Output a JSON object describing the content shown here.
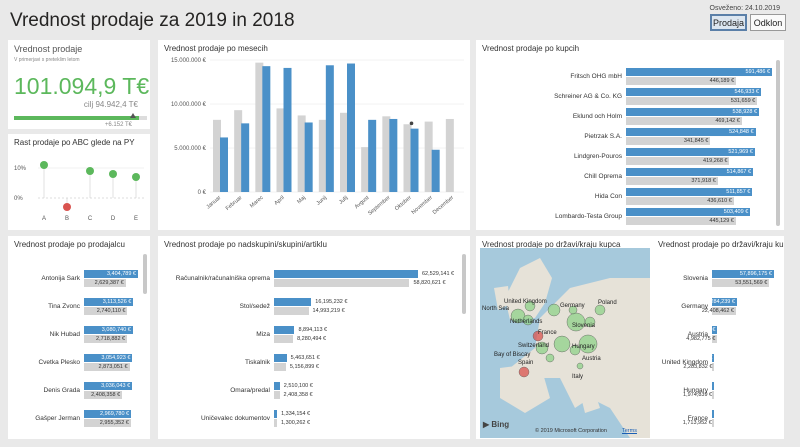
{
  "header": {
    "title": "Vrednost prodaje za 2019 in 2018",
    "refreshed": "Osveženo: 24.10.2019",
    "btn_sales": "Prodaja",
    "btn_deviation": "Odklon"
  },
  "kpi": {
    "title": "Vrednost prodaje",
    "subtitle": "V primerjavi s preteklim letom",
    "value": "101.094,9 T€",
    "target": "cilj 94.942,4 T€",
    "diff": "+6.152 T€",
    "progress": 0.94
  },
  "abc": {
    "title": "Rast prodaje po ABC glede na PY",
    "ticks": [
      "10%",
      "0%"
    ],
    "categories": [
      "A",
      "B",
      "C",
      "D",
      "E"
    ],
    "values": [
      11,
      -3,
      9,
      8,
      7
    ]
  },
  "months": {
    "title": "Vrednost prodaje po mesecih",
    "yticks": [
      "15.000.000 €",
      "10.000.000 €",
      "5.000.000 €",
      "0 €"
    ],
    "categories": [
      "Januar",
      "Februar",
      "Marec",
      "April",
      "Maj",
      "Junij",
      "Julij",
      "Avgust",
      "September",
      "Oktober",
      "November",
      "December"
    ],
    "cur": [
      6.2,
      7.8,
      14.3,
      14.1,
      7.9,
      14.4,
      14.6,
      8.2,
      8.3,
      7.2,
      4.8,
      null
    ],
    "prev": [
      8.2,
      9.3,
      14.7,
      9.5,
      8.7,
      8.2,
      9.0,
      5.1,
      8.6,
      7.7,
      8.0,
      8.3
    ]
  },
  "customers": {
    "title": "Vrednost prodaje po kupcih",
    "items": [
      {
        "name": "Fritsch OHG mbH",
        "cur": "591,486 €",
        "prev": "446,189 €",
        "c": 591.5,
        "p": 446.2
      },
      {
        "name": "Schreiner AG & Co. KG",
        "cur": "546,933 €",
        "prev": "531,659 €",
        "c": 546.9,
        "p": 531.7
      },
      {
        "name": "Eklund och Holm",
        "cur": "538,928 €",
        "prev": "469,142 €",
        "c": 538.9,
        "p": 469.1
      },
      {
        "name": "Pietrzak S.A.",
        "cur": "524,848 €",
        "prev": "341,845 €",
        "c": 524.8,
        "p": 341.8
      },
      {
        "name": "Lindgren-Pouros",
        "cur": "521,969 €",
        "prev": "419,268 €",
        "c": 522.0,
        "p": 419.3
      },
      {
        "name": "Chill Oprema",
        "cur": "514,867 €",
        "prev": "371,918 €",
        "c": 514.9,
        "p": 371.9
      },
      {
        "name": "Hida Con",
        "cur": "511,857 €",
        "prev": "436,610 €",
        "c": 511.9,
        "p": 436.6
      },
      {
        "name": "Lombardo-Testa Group",
        "cur": "503,409 €",
        "prev": "445,129 €",
        "c": 503.4,
        "p": 445.1
      }
    ]
  },
  "salespeople": {
    "title": "Vrednost prodaje po prodajalcu",
    "items": [
      {
        "name": "Antonija Sark",
        "cur": "3,404,789 €",
        "prev": "2,629,387 €",
        "c": 3404.8,
        "p": 2629.4
      },
      {
        "name": "Tina Zvonc",
        "cur": "3,113,526 €",
        "prev": "2,740,110 €",
        "c": 3113.5,
        "p": 2740.1
      },
      {
        "name": "Nik Hubad",
        "cur": "3,080,740 €",
        "prev": "2,718,882 €",
        "c": 3080.7,
        "p": 2718.9
      },
      {
        "name": "Cvetka Plesko",
        "cur": "3,054,923 €",
        "prev": "2,873,051 €",
        "c": 3054.9,
        "p": 2873.1
      },
      {
        "name": "Denis Grada",
        "cur": "3,036,043 €",
        "prev": "2,408,358 €",
        "c": 3036.0,
        "p": 2408.4
      },
      {
        "name": "Gašper Jerman",
        "cur": "2,969,780 €",
        "prev": "2,955,352 €",
        "c": 2969.8,
        "p": 2955.4
      }
    ]
  },
  "groups": {
    "title": "Vrednost prodaje po nadskupini/skupini/artiklu",
    "items": [
      {
        "name": "Računalnik/računalniška oprema",
        "cur": "62,529,141 €",
        "prev": "58,820,621 €",
        "c": 62529,
        "p": 58821
      },
      {
        "name": "Stol/sedež",
        "cur": "16,195,232 €",
        "prev": "14,993,219 €",
        "c": 16195,
        "p": 14993
      },
      {
        "name": "Miza",
        "cur": "8,894,113 €",
        "prev": "8,280,494 €",
        "c": 8894,
        "p": 8280
      },
      {
        "name": "Tiskalnik",
        "cur": "5,463,651 €",
        "prev": "5,156,899 €",
        "c": 5464,
        "p": 5157
      },
      {
        "name": "Omara/predal",
        "cur": "2,510,100 €",
        "prev": "2,408,358 €",
        "c": 2510,
        "p": 2408
      },
      {
        "name": "Uničevalec dokumentov",
        "cur": "1,334,154 €",
        "prev": "1,300,262 €",
        "c": 1334,
        "p": 1300
      }
    ]
  },
  "map": {
    "title": "Vrednost prodaje po državi/kraju kupca",
    "labels": [
      "United Kingdom",
      "Netherlands",
      "Germany",
      "Poland",
      "France",
      "Slovenia",
      "Switzerland",
      "Hungary",
      "Austria",
      "Spain",
      "Italy",
      "North Sea",
      "Bay of Biscay"
    ],
    "copyright": "© 2019 Microsoft Corporation",
    "terms": "Terms",
    "bing": "Bing"
  },
  "countries": {
    "title": "Vrednost prodaje po državi/kraju ku...",
    "items": [
      {
        "name": "Slovenia",
        "cur": "57,896,175 €",
        "prev": "53,551,569 €",
        "c": 57896,
        "p": 53552
      },
      {
        "name": "Germany",
        "cur": "23,284,239 €",
        "prev": "22,408,462 €",
        "c": 23284,
        "p": 22408
      },
      {
        "name": "Austria",
        "cur": "5,111,951 €",
        "prev": "4,982,775 €",
        "c": 5112,
        "p": 4983
      },
      {
        "name": "United Kingdom",
        "cur": "2,302,022 €",
        "prev": "2,283,832 €",
        "c": 2302,
        "p": 2284
      },
      {
        "name": "Hungary",
        "cur": "2,009,273 €",
        "prev": "1,974,839 €",
        "c": 2009,
        "p": 1975
      },
      {
        "name": "France",
        "cur": "1,964,270 €",
        "prev": "1,713,952 €",
        "c": 1964,
        "p": 1714
      }
    ]
  },
  "colors": {
    "current": "#4a90c8",
    "previous": "#d3d3d3",
    "positive": "#5cb85c",
    "negative": "#d9534f"
  }
}
